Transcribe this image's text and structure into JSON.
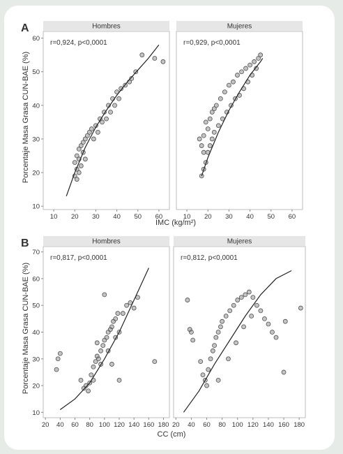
{
  "chart_data": [
    {
      "panel_label": "A",
      "type": "scatter",
      "xlabel": "IMC (kg/m²)",
      "ylabel": "Porcentaje Masa Grasa CUN-BAE (%)",
      "xlim": [
        5,
        65
      ],
      "ylim": [
        9,
        62
      ],
      "xticks": [
        10,
        20,
        30,
        40,
        50,
        60
      ],
      "yticks": [
        10,
        20,
        30,
        40,
        50,
        60
      ],
      "point_color": "#505050",
      "facets": [
        {
          "name": "Hombres",
          "annotation": "r=0,924, p<0,0001",
          "fit_curve": [
            [
              16,
              13
            ],
            [
              20,
              20
            ],
            [
              25,
              27.5
            ],
            [
              30,
              33.5
            ],
            [
              35,
              38.5
            ],
            [
              40,
              43
            ],
            [
              45,
              47
            ],
            [
              50,
              50.5
            ],
            [
              55,
              54
            ],
            [
              60,
              58
            ]
          ],
          "points": [
            [
              20,
              19
            ],
            [
              21,
              18
            ],
            [
              22,
              20
            ],
            [
              20,
              23
            ],
            [
              21,
              25
            ],
            [
              22,
              27
            ],
            [
              23,
              28
            ],
            [
              21,
              21
            ],
            [
              22,
              24
            ],
            [
              24,
              29
            ],
            [
              26,
              31
            ],
            [
              28,
              33
            ],
            [
              30,
              34
            ],
            [
              32,
              36
            ],
            [
              34,
              38
            ],
            [
              36,
              40
            ],
            [
              38,
              42
            ],
            [
              40,
              44
            ],
            [
              42,
              45
            ],
            [
              44,
              46
            ],
            [
              46,
              47
            ],
            [
              47,
              48
            ],
            [
              49,
              50
            ],
            [
              52,
              55
            ],
            [
              58,
              54
            ],
            [
              62,
              53
            ],
            [
              25,
              30
            ],
            [
              27,
              32
            ],
            [
              24,
              26
            ],
            [
              23,
              22
            ],
            [
              25,
              24
            ],
            [
              29,
              30
            ],
            [
              31,
              32
            ],
            [
              33,
              35
            ],
            [
              35,
              36
            ],
            [
              37,
              38
            ],
            [
              39,
              40
            ],
            [
              41,
              42
            ]
          ]
        },
        {
          "name": "Mujeres",
          "annotation": "r=0,929, p<0,0001",
          "fit_curve": [
            [
              17,
              19
            ],
            [
              20,
              24.5
            ],
            [
              25,
              32
            ],
            [
              30,
              38.5
            ],
            [
              35,
              44
            ],
            [
              40,
              49
            ],
            [
              45,
              53
            ],
            [
              46,
              54
            ]
          ],
          "points": [
            [
              17,
              19
            ],
            [
              18,
              21
            ],
            [
              19,
              23
            ],
            [
              18,
              26
            ],
            [
              17,
              28
            ],
            [
              16,
              30
            ],
            [
              18,
              31
            ],
            [
              20,
              33
            ],
            [
              19,
              35
            ],
            [
              21,
              36
            ],
            [
              22,
              38
            ],
            [
              23,
              39
            ],
            [
              24,
              40
            ],
            [
              26,
              42
            ],
            [
              28,
              44
            ],
            [
              30,
              46
            ],
            [
              32,
              47
            ],
            [
              34,
              49
            ],
            [
              36,
              50
            ],
            [
              38,
              51
            ],
            [
              40,
              52
            ],
            [
              42,
              53
            ],
            [
              44,
              54
            ],
            [
              45,
              55
            ],
            [
              20,
              26
            ],
            [
              21,
              28
            ],
            [
              22,
              30
            ],
            [
              23,
              32
            ],
            [
              25,
              34
            ],
            [
              27,
              36
            ],
            [
              29,
              38
            ],
            [
              31,
              40
            ],
            [
              33,
              42
            ],
            [
              35,
              43
            ],
            [
              37,
              45
            ],
            [
              39,
              47
            ],
            [
              41,
              49
            ],
            [
              43,
              51
            ]
          ]
        }
      ]
    },
    {
      "panel_label": "B",
      "type": "scatter",
      "xlabel": "CC (cm)",
      "ylabel": "Porcentaje Masa Grasa CUN-BAE (%)",
      "xlim": [
        17,
        188
      ],
      "ylim": [
        8,
        72
      ],
      "xticks": [
        20,
        40,
        60,
        80,
        100,
        120,
        140,
        160,
        180
      ],
      "yticks": [
        10,
        20,
        30,
        40,
        50,
        60,
        70
      ],
      "point_color": "#505050",
      "facets": [
        {
          "name": "Hombres",
          "annotation": "r=0,817, p<0,0001",
          "fit_curve": [
            [
              40,
              11
            ],
            [
              60,
              15
            ],
            [
              80,
              21
            ],
            [
              100,
              30
            ],
            [
              120,
              40
            ],
            [
              140,
              52
            ],
            [
              160,
              64
            ]
          ],
          "points": [
            [
              35,
              26
            ],
            [
              37,
              30
            ],
            [
              40,
              32
            ],
            [
              68,
              22
            ],
            [
              72,
              19
            ],
            [
              75,
              20
            ],
            [
              78,
              18
            ],
            [
              80,
              21
            ],
            [
              82,
              24
            ],
            [
              85,
              27
            ],
            [
              88,
              29
            ],
            [
              90,
              31
            ],
            [
              92,
              30
            ],
            [
              95,
              33
            ],
            [
              98,
              35
            ],
            [
              100,
              37
            ],
            [
              103,
              38
            ],
            [
              105,
              40
            ],
            [
              108,
              41
            ],
            [
              110,
              42
            ],
            [
              112,
              44
            ],
            [
              115,
              45
            ],
            [
              118,
              47
            ],
            [
              120,
              40
            ],
            [
              100,
              54
            ],
            [
              125,
              47
            ],
            [
              130,
              50
            ],
            [
              135,
              51
            ],
            [
              140,
              49
            ],
            [
              145,
              53
            ],
            [
              168,
              29
            ],
            [
              85,
              22
            ],
            [
              95,
              28
            ],
            [
              105,
              33
            ],
            [
              115,
              38
            ],
            [
              120,
              22
            ],
            [
              90,
              36
            ],
            [
              110,
              28
            ]
          ]
        },
        {
          "name": "Mujeres",
          "annotation": "r=0,812, p<0,0001",
          "fit_curve": [
            [
              30,
              10
            ],
            [
              50,
              18
            ],
            [
              70,
              28
            ],
            [
              90,
              37
            ],
            [
              110,
              46
            ],
            [
              130,
              54
            ],
            [
              150,
              60
            ],
            [
              170,
              63
            ]
          ],
          "points": [
            [
              35,
              52
            ],
            [
              38,
              41
            ],
            [
              40,
              40
            ],
            [
              42,
              37
            ],
            [
              52,
              29
            ],
            [
              55,
              24
            ],
            [
              58,
              22
            ],
            [
              60,
              20
            ],
            [
              62,
              26
            ],
            [
              65,
              30
            ],
            [
              68,
              33
            ],
            [
              70,
              35
            ],
            [
              72,
              38
            ],
            [
              75,
              40
            ],
            [
              78,
              42
            ],
            [
              80,
              44
            ],
            [
              85,
              46
            ],
            [
              90,
              48
            ],
            [
              95,
              50
            ],
            [
              100,
              52
            ],
            [
              105,
              53
            ],
            [
              110,
              54
            ],
            [
              115,
              55
            ],
            [
              120,
              53
            ],
            [
              125,
              50
            ],
            [
              130,
              48
            ],
            [
              135,
              45
            ],
            [
              140,
              43
            ],
            [
              145,
              40
            ],
            [
              150,
              38
            ],
            [
              162,
              44
            ],
            [
              160,
              25
            ],
            [
              182,
              49
            ],
            [
              88,
              30
            ],
            [
              98,
              36
            ],
            [
              108,
              42
            ],
            [
              118,
              46
            ],
            [
              75,
              22
            ]
          ]
        }
      ]
    }
  ]
}
